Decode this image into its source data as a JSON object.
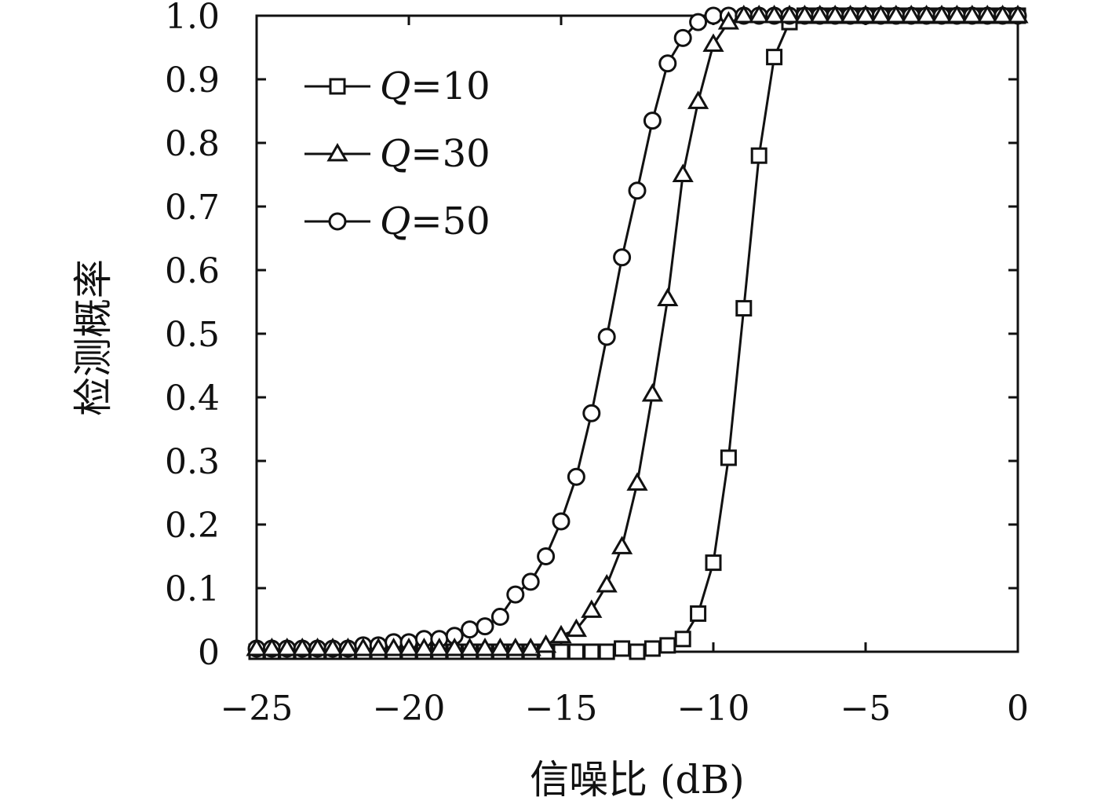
{
  "chart_data": {
    "type": "line",
    "title": "",
    "xlabel": "信噪比 (dB)",
    "ylabel": "检测概率",
    "xlim": [
      -25,
      0
    ],
    "ylim": [
      0,
      1.0
    ],
    "x_ticks": [
      -25,
      -20,
      -15,
      -10,
      -5,
      0
    ],
    "x_tick_labels": [
      "−25",
      "−20",
      "−15",
      "−10",
      "−5",
      "0"
    ],
    "y_ticks": [
      0,
      0.1,
      0.2,
      0.3,
      0.4,
      0.5,
      0.6,
      0.7,
      0.8,
      0.9,
      1.0
    ],
    "y_tick_labels": [
      "0",
      "0.1",
      "0.2",
      "0.3",
      "0.4",
      "0.5",
      "0.6",
      "0.7",
      "0.8",
      "0.9",
      "1.0"
    ],
    "grid": false,
    "legend_position": "top-left",
    "colors": {
      "line": "#111111",
      "marker_fill": "#ffffff"
    },
    "series": [
      {
        "name": "Q=10",
        "legend_var": "Q",
        "legend_value": "=10",
        "marker": "square",
        "x": [
          -25,
          -24.5,
          -24,
          -23.5,
          -23,
          -22.5,
          -22,
          -21.5,
          -21,
          -20.5,
          -20,
          -19.5,
          -19,
          -18.5,
          -18,
          -17.5,
          -17,
          -16.5,
          -16,
          -15.5,
          -15,
          -14.5,
          -14,
          -13.5,
          -13,
          -12.5,
          -12,
          -11.5,
          -11,
          -10.5,
          -10,
          -9.5,
          -9,
          -8.5,
          -8,
          -7.5,
          -7,
          -6.5,
          -6,
          -5.5,
          -5,
          -4.5,
          -4,
          -3.5,
          -3,
          -2.5,
          -2,
          -1.5,
          -1,
          -0.5,
          0
        ],
        "y": [
          0,
          0,
          0,
          0,
          0,
          0,
          0,
          0,
          0,
          0,
          0,
          0,
          0,
          0,
          0,
          0,
          0,
          0,
          0,
          0,
          0,
          0,
          0,
          0,
          0.005,
          0,
          0.005,
          0.01,
          0.02,
          0.06,
          0.14,
          0.305,
          0.54,
          0.78,
          0.935,
          0.99,
          1.0,
          1.0,
          1.0,
          1.0,
          1.0,
          1.0,
          1.0,
          1.0,
          1.0,
          1.0,
          1.0,
          1.0,
          1.0,
          1.0,
          1.0
        ]
      },
      {
        "name": "Q=30",
        "legend_var": "Q",
        "legend_value": "=30",
        "marker": "triangle",
        "x": [
          -25,
          -24.5,
          -24,
          -23.5,
          -23,
          -22.5,
          -22,
          -21.5,
          -21,
          -20.5,
          -20,
          -19.5,
          -19,
          -18.5,
          -18,
          -17.5,
          -17,
          -16.5,
          -16,
          -15.5,
          -15,
          -14.5,
          -14,
          -13.5,
          -13,
          -12.5,
          -12,
          -11.5,
          -11,
          -10.5,
          -10,
          -9.5,
          -9,
          -8.5,
          -8,
          -7.5,
          -7,
          -6.5,
          -6,
          -5.5,
          -5,
          -4.5,
          -4,
          -3.5,
          -3,
          -2.5,
          -2,
          -1.5,
          -1,
          -0.5,
          0
        ],
        "y": [
          0.005,
          0.005,
          0.005,
          0.005,
          0.005,
          0.005,
          0.005,
          0.005,
          0.005,
          0.005,
          0.005,
          0.005,
          0.005,
          0.005,
          0.005,
          0.005,
          0.005,
          0.005,
          0.005,
          0.01,
          0.025,
          0.035,
          0.065,
          0.105,
          0.165,
          0.265,
          0.405,
          0.555,
          0.75,
          0.865,
          0.955,
          0.99,
          1.0,
          1.0,
          1.0,
          1.0,
          1.0,
          1.0,
          1.0,
          1.0,
          1.0,
          1.0,
          1.0,
          1.0,
          1.0,
          1.0,
          1.0,
          1.0,
          1.0,
          1.0,
          1.0
        ]
      },
      {
        "name": "Q=50",
        "legend_var": "Q",
        "legend_value": "=50",
        "marker": "circle",
        "x": [
          -25,
          -24.5,
          -24,
          -23.5,
          -23,
          -22.5,
          -22,
          -21.5,
          -21,
          -20.5,
          -20,
          -19.5,
          -19,
          -18.5,
          -18,
          -17.5,
          -17,
          -16.5,
          -16,
          -15.5,
          -15,
          -14.5,
          -14,
          -13.5,
          -13,
          -12.5,
          -12,
          -11.5,
          -11,
          -10.5,
          -10,
          -9.5,
          -9,
          -8.5,
          -8,
          -7.5,
          -7,
          -6.5,
          -6,
          -5.5,
          -5,
          -4.5,
          -4,
          -3.5,
          -3,
          -2.5,
          -2,
          -1.5,
          -1,
          -0.5,
          0
        ],
        "y": [
          0.005,
          0.005,
          0.005,
          0.005,
          0.005,
          0.005,
          0.005,
          0.01,
          0.01,
          0.015,
          0.015,
          0.02,
          0.02,
          0.025,
          0.035,
          0.04,
          0.055,
          0.09,
          0.11,
          0.15,
          0.205,
          0.275,
          0.375,
          0.495,
          0.62,
          0.725,
          0.835,
          0.925,
          0.965,
          0.99,
          1.0,
          1.0,
          1.0,
          1.0,
          1.0,
          1.0,
          1.0,
          1.0,
          1.0,
          1.0,
          1.0,
          1.0,
          1.0,
          1.0,
          1.0,
          1.0,
          1.0,
          1.0,
          1.0,
          1.0,
          1.0
        ]
      }
    ]
  }
}
